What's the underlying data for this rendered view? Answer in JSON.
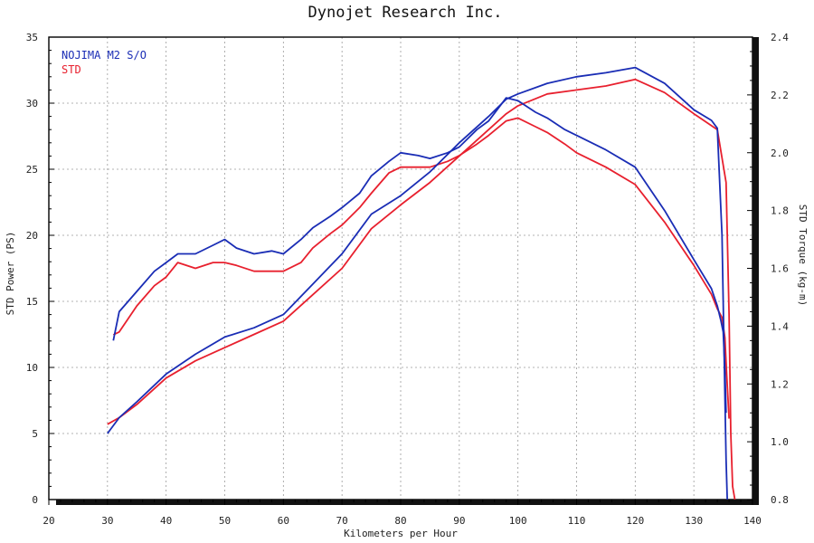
{
  "chart_data": {
    "type": "line",
    "title": "Dynojet  Research  Inc.",
    "xlabel": "Kilometers per Hour",
    "ylabel_left": "STD Power (PS)",
    "ylabel_right": "STD Torque (kg-m)",
    "xlim": [
      20,
      140
    ],
    "ylim_left": [
      0,
      35
    ],
    "ylim_right": [
      0.8,
      2.4
    ],
    "x_ticks": [
      "20",
      "30",
      "40",
      "50",
      "60",
      "70",
      "80",
      "90",
      "100",
      "110",
      "120",
      "130",
      "140"
    ],
    "y_left_ticks": [
      "0",
      "5",
      "10",
      "15",
      "20",
      "25",
      "30",
      "35"
    ],
    "y_right_ticks": [
      "0.8",
      "1.0",
      "1.2",
      "1.4",
      "1.6",
      "1.8",
      "2.0",
      "2.2",
      "2.4"
    ],
    "grid": true,
    "legend_position": "top-left",
    "series": [
      {
        "name": "NOJIMA M2 S/O",
        "color": "#1a2db5",
        "axis": "left",
        "quantity": "power",
        "x": [
          30,
          32,
          35,
          40,
          45,
          50,
          55,
          60,
          65,
          70,
          75,
          80,
          85,
          90,
          95,
          98,
          100,
          105,
          110,
          115,
          120,
          125,
          130,
          133,
          134,
          134.8,
          135.2,
          135.5,
          135.7
        ],
        "y": [
          5.0,
          6.2,
          7.4,
          9.5,
          11.0,
          12.3,
          13.0,
          14.0,
          16.3,
          18.6,
          21.6,
          23.0,
          24.8,
          27.0,
          29.0,
          30.3,
          30.7,
          31.5,
          32.0,
          32.3,
          32.7,
          31.5,
          29.5,
          28.7,
          28.1,
          20.0,
          10.0,
          3.0,
          0.0
        ]
      },
      {
        "name": "STD",
        "color": "#e8202e",
        "axis": "left",
        "quantity": "power",
        "x": [
          30,
          32,
          35,
          40,
          45,
          50,
          55,
          60,
          65,
          70,
          75,
          80,
          85,
          90,
          95,
          98,
          100,
          105,
          110,
          115,
          120,
          125,
          130,
          134,
          135.5,
          136,
          136.3,
          136.6,
          137
        ],
        "y": [
          5.7,
          6.2,
          7.2,
          9.2,
          10.5,
          11.5,
          12.5,
          13.5,
          15.5,
          17.5,
          20.5,
          22.3,
          24.0,
          26.0,
          28.0,
          29.2,
          29.8,
          30.7,
          31.0,
          31.3,
          31.8,
          30.8,
          29.2,
          28.0,
          24.0,
          14.0,
          5.0,
          1.0,
          0.0
        ]
      },
      {
        "name": "NOJIMA M2 S/O",
        "color": "#1a2db5",
        "axis": "right",
        "quantity": "torque",
        "x": [
          31,
          32,
          35,
          38,
          40,
          42,
          45,
          48,
          50,
          52,
          55,
          58,
          60,
          63,
          65,
          68,
          70,
          73,
          75,
          78,
          80,
          83,
          85,
          88,
          90,
          93,
          95,
          98,
          100,
          103,
          105,
          108,
          110,
          115,
          120,
          125,
          130,
          133,
          134,
          134.6,
          135.0,
          135.3,
          135.5
        ],
        "y": [
          1.35,
          1.45,
          1.52,
          1.59,
          1.62,
          1.65,
          1.65,
          1.68,
          1.7,
          1.67,
          1.65,
          1.66,
          1.65,
          1.7,
          1.74,
          1.78,
          1.81,
          1.86,
          1.92,
          1.97,
          2.0,
          1.99,
          1.98,
          2.0,
          2.02,
          2.08,
          2.11,
          2.19,
          2.18,
          2.14,
          2.12,
          2.08,
          2.06,
          2.01,
          1.95,
          1.8,
          1.63,
          1.53,
          1.47,
          1.42,
          1.38,
          1.25,
          1.1
        ]
      },
      {
        "name": "STD",
        "color": "#e8202e",
        "axis": "right",
        "quantity": "torque",
        "x": [
          31,
          32,
          35,
          38,
          40,
          42,
          45,
          48,
          50,
          52,
          55,
          58,
          60,
          63,
          65,
          68,
          70,
          73,
          75,
          78,
          80,
          83,
          85,
          88,
          90,
          93,
          95,
          98,
          100,
          103,
          105,
          108,
          110,
          115,
          120,
          125,
          130,
          133,
          134,
          134.8,
          135.3,
          135.6,
          136
        ],
        "y": [
          1.37,
          1.38,
          1.47,
          1.54,
          1.57,
          1.62,
          1.6,
          1.62,
          1.62,
          1.61,
          1.59,
          1.59,
          1.59,
          1.62,
          1.67,
          1.72,
          1.75,
          1.81,
          1.86,
          1.93,
          1.95,
          1.95,
          1.95,
          1.97,
          1.99,
          2.03,
          2.06,
          2.11,
          2.12,
          2.09,
          2.07,
          2.03,
          2.0,
          1.95,
          1.89,
          1.76,
          1.61,
          1.51,
          1.46,
          1.43,
          1.36,
          1.23,
          1.08
        ]
      }
    ]
  }
}
